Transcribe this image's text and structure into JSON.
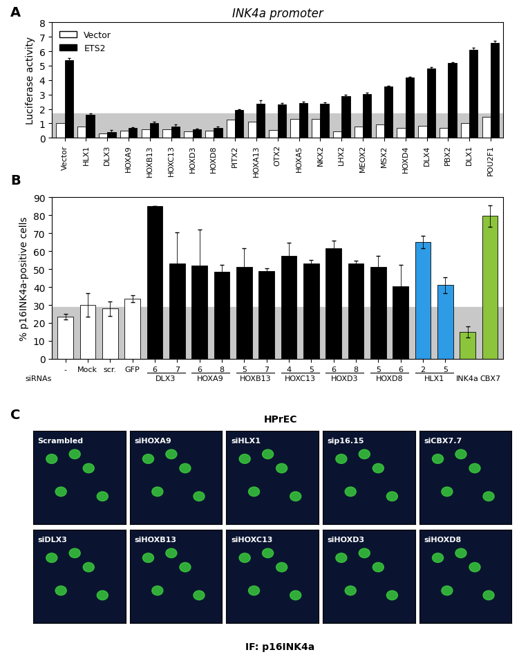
{
  "chart_data": [
    {
      "type": "bar",
      "panel_label": "A",
      "title": "INK4a promoter",
      "ylabel": "Luciferase activity",
      "categories": [
        "Vector",
        "HLX1",
        "DLX3",
        "HOXA9",
        "HOXB13",
        "HOXC13",
        "HOXD3",
        "HOXD8",
        "PITX2",
        "HOXA13",
        "OTX2",
        "HOXA5",
        "NKX2",
        "LHX2",
        "MEOX2",
        "MSX2",
        "HOXD4",
        "DLX4",
        "PBX2",
        "DLX1",
        "POU2F1"
      ],
      "series": [
        {
          "name": "Vector",
          "color": "#ffffff",
          "values": [
            1.0,
            0.8,
            0.3,
            0.5,
            0.6,
            0.6,
            0.45,
            0.5,
            1.25,
            1.1,
            0.55,
            1.3,
            1.3,
            0.45,
            0.8,
            0.95,
            0.7,
            0.85,
            0.7,
            1.0,
            1.45
          ]
        },
        {
          "name": "ETS2",
          "color": "#000000",
          "values": [
            5.4,
            1.6,
            0.4,
            0.7,
            1.0,
            0.8,
            0.6,
            0.7,
            1.95,
            2.35,
            2.3,
            2.4,
            2.35,
            2.9,
            3.05,
            3.55,
            4.2,
            4.8,
            5.2,
            6.1,
            6.6
          ],
          "errors": [
            0.15,
            0.08,
            0.15,
            0.05,
            0.12,
            0.12,
            0.05,
            0.1,
            0.05,
            0.25,
            0.1,
            0.12,
            0.12,
            0.1,
            0.1,
            0.05,
            0.05,
            0.1,
            0.05,
            0.15,
            0.12
          ]
        }
      ],
      "band": [
        0,
        1.7
      ],
      "ylim": [
        0,
        8
      ],
      "yticks": [
        0,
        1,
        2,
        3,
        4,
        5,
        6,
        7,
        8
      ],
      "legend": "upper left"
    },
    {
      "type": "bar",
      "panel_label": "B",
      "ylabel": "% p16INK4a-positive cells",
      "xlabel": "siRNAs",
      "categories": [
        "-",
        "Mock",
        "scr.",
        "GFP",
        "6",
        "7",
        "6",
        "8",
        "5",
        "7",
        "4",
        "5",
        "6",
        "8",
        "5",
        "6",
        "2",
        "5",
        null,
        null
      ],
      "groups": [
        null,
        null,
        null,
        null,
        "DLX3",
        "DLX3",
        "HOXA9",
        "HOXA9",
        "HOXB13",
        "HOXB13",
        "HOXC13",
        "HOXC13",
        "HOXD3",
        "HOXD3",
        "HOXD8",
        "HOXD8",
        "HLX1",
        "HLX1",
        "INK4a",
        "CBX7"
      ],
      "values": [
        23.5,
        30,
        28,
        33.5,
        85,
        53,
        52,
        48.5,
        51,
        49,
        57.5,
        53,
        61.5,
        53,
        51,
        40.5,
        65,
        41,
        15,
        79.5
      ],
      "errors": [
        1.5,
        6.5,
        4,
        2,
        0,
        17.5,
        20,
        4,
        10.5,
        1.5,
        7,
        2,
        4.5,
        1.5,
        6.5,
        12,
        3.5,
        4.5,
        3,
        6
      ],
      "colors": [
        "#ffffff",
        "#ffffff",
        "#ffffff",
        "#ffffff",
        "#000000",
        "#000000",
        "#000000",
        "#000000",
        "#000000",
        "#000000",
        "#000000",
        "#000000",
        "#000000",
        "#000000",
        "#000000",
        "#000000",
        "#2e9be6",
        "#2e9be6",
        "#8cc43c",
        "#8cc43c"
      ],
      "band": [
        0,
        29
      ],
      "ylim": [
        0,
        90
      ],
      "yticks": [
        0,
        10,
        20,
        30,
        40,
        50,
        60,
        70,
        80,
        90
      ]
    },
    {
      "type": "image_grid",
      "panel_label": "C",
      "title": "HPrEC",
      "xlabel": "IF: p16INK4a",
      "panels": [
        "Scrambled",
        "siHOXA9",
        "siHLX1",
        "sip16.15",
        "siCBX7.7",
        "siDLX3",
        "siHOXB13",
        "siHOXC13",
        "siHOXD3",
        "siHOXD8"
      ]
    }
  ]
}
